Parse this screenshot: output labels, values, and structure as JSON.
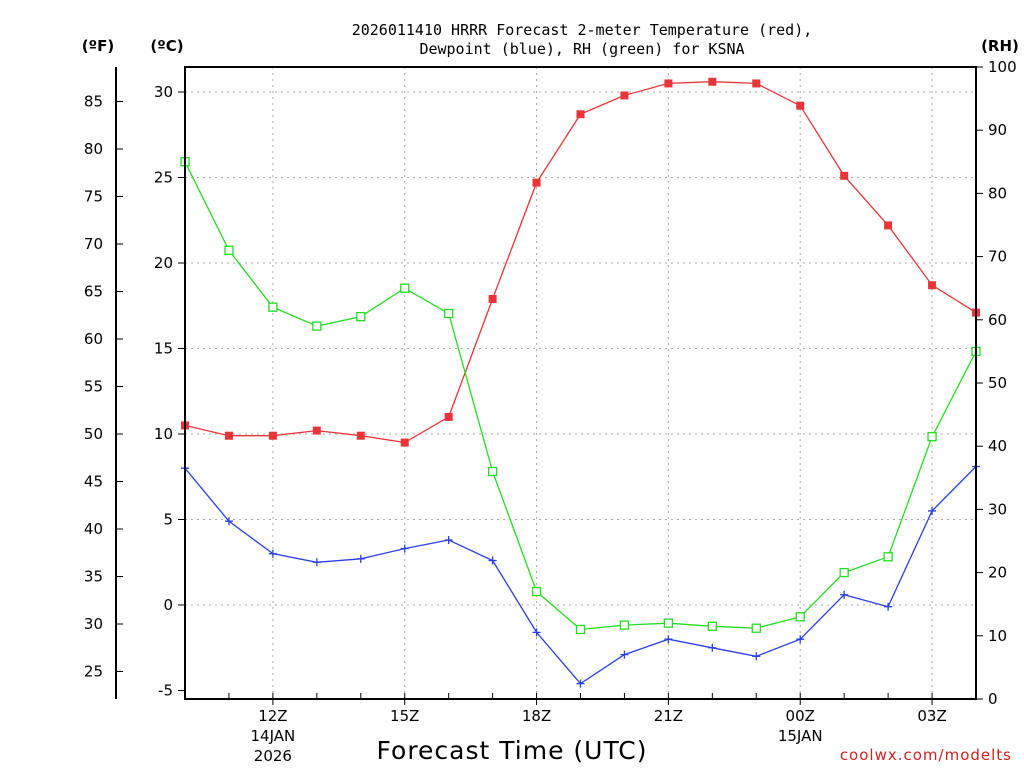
{
  "chart_data": {
    "type": "line",
    "title_line1": "2026011410 HRRR Forecast 2-meter Temperature (red),",
    "title_line2": "Dewpoint (blue), RH (green) for KSNA",
    "xlabel": "Forecast Time (UTC)",
    "credit": "coolwx.com/modelts",
    "unit_f": "(ºF)",
    "unit_c": "(ºC)",
    "unit_rh": "(RH)",
    "x_hours": [
      10,
      11,
      12,
      13,
      14,
      15,
      16,
      17,
      18,
      19,
      20,
      21,
      22,
      23,
      24,
      25,
      26,
      27,
      28
    ],
    "xlim": [
      10,
      28
    ],
    "ylim_c": [
      -5.5,
      31.5
    ],
    "ylim_rh": [
      0,
      100
    ],
    "x_ticks": [
      {
        "x": 12,
        "label": "12Z",
        "sub1": "14JAN",
        "sub2": "2026"
      },
      {
        "x": 15,
        "label": "15Z",
        "sub1": "",
        "sub2": ""
      },
      {
        "x": 18,
        "label": "18Z",
        "sub1": "",
        "sub2": ""
      },
      {
        "x": 21,
        "label": "21Z",
        "sub1": "",
        "sub2": ""
      },
      {
        "x": 24,
        "label": "00Z",
        "sub1": "15JAN",
        "sub2": ""
      },
      {
        "x": 27,
        "label": "03Z",
        "sub1": "",
        "sub2": ""
      }
    ],
    "c_ticks": [
      -5,
      0,
      5,
      10,
      15,
      20,
      25,
      30
    ],
    "f_ticks": [
      25,
      30,
      35,
      40,
      45,
      50,
      55,
      60,
      65,
      70,
      75,
      80,
      85
    ],
    "rh_ticks": [
      0,
      10,
      20,
      30,
      40,
      50,
      60,
      70,
      80,
      90,
      100
    ],
    "series": [
      {
        "name": "Temperature",
        "unit": "C",
        "color": "#e8353a",
        "values": [
          10.5,
          9.9,
          9.9,
          10.2,
          9.9,
          9.5,
          11.0,
          17.9,
          24.7,
          28.7,
          29.8,
          30.5,
          30.6,
          30.5,
          29.2,
          25.1,
          22.2,
          18.7,
          17.1
        ]
      },
      {
        "name": "Dewpoint",
        "unit": "C",
        "color": "#2a3fe0",
        "values": [
          8.0,
          4.9,
          3.0,
          2.5,
          2.7,
          3.3,
          3.8,
          2.6,
          -1.6,
          -4.6,
          -2.9,
          -2.0,
          -2.5,
          -3.0,
          -2.0,
          0.6,
          -0.1,
          5.5,
          8.1
        ]
      },
      {
        "name": "RH",
        "unit": "%",
        "color": "#22dd22",
        "values": [
          85,
          71,
          62,
          59,
          60.5,
          65,
          61,
          36,
          17,
          11,
          11.7,
          12,
          11.5,
          11.2,
          13,
          20,
          22.5,
          41.5,
          55
        ]
      }
    ]
  }
}
